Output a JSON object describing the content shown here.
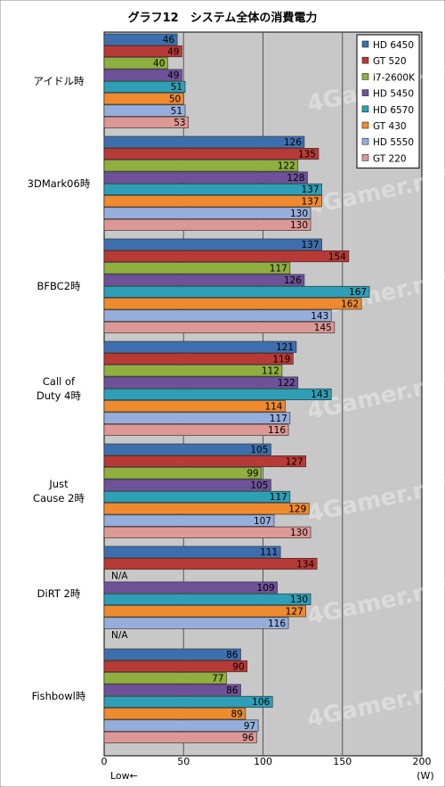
{
  "chart_data": {
    "type": "bar",
    "orientation": "horizontal",
    "title": "グラフ12　システム全体の消費電力",
    "categories": [
      [
        "アイドル時"
      ],
      [
        "3DMark06時"
      ],
      [
        "BFBC2時"
      ],
      [
        "Call of",
        "Duty 4時"
      ],
      [
        "Just",
        "Cause 2時"
      ],
      [
        "DiRT 2時"
      ],
      [
        "Fishbowl時"
      ]
    ],
    "series": [
      {
        "name": "HD 6450",
        "color": "#3d6fae",
        "values": [
          46,
          126,
          137,
          121,
          105,
          111,
          86
        ]
      },
      {
        "name": "GT 520",
        "color": "#b83a36",
        "values": [
          49,
          135,
          154,
          119,
          127,
          134,
          90
        ]
      },
      {
        "name": "i7-2600K",
        "color": "#8fb03f",
        "values": [
          40,
          122,
          117,
          112,
          99,
          null,
          77
        ]
      },
      {
        "name": "HD 5450",
        "color": "#6e5199",
        "values": [
          49,
          128,
          126,
          122,
          105,
          109,
          86
        ]
      },
      {
        "name": "HD 6570",
        "color": "#2e9fb6",
        "values": [
          51,
          137,
          167,
          143,
          117,
          130,
          106
        ]
      },
      {
        "name": "GT 430",
        "color": "#ef8a2f",
        "values": [
          50,
          137,
          162,
          114,
          129,
          127,
          89
        ]
      },
      {
        "name": "HD 5550",
        "color": "#96aedb",
        "values": [
          51,
          130,
          143,
          117,
          107,
          116,
          97
        ]
      },
      {
        "name": "GT 220",
        "color": "#dc9895",
        "values": [
          53,
          130,
          145,
          116,
          130,
          null,
          96
        ]
      }
    ],
    "na_label": "N/A",
    "x_ticks": [
      0,
      50,
      100,
      150,
      200
    ],
    "xlim": [
      0,
      200
    ],
    "x_unit": "(W)",
    "x_direction_label": "Low",
    "x_direction_arrow": "←",
    "legend_position": "top-right",
    "grid": true,
    "plot_background": "#c8c8c8",
    "watermark": "4Gamer.net"
  }
}
